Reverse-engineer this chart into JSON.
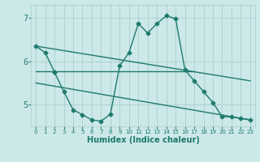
{
  "xlabel": "Humidex (Indice chaleur)",
  "bg_color": "#cce8e8",
  "grid_color": "#aacfcf",
  "line_color": "#1e7a6e",
  "xlim": [
    -0.5,
    23.5
  ],
  "ylim": [
    4.5,
    7.3
  ],
  "yticks": [
    5,
    6,
    7
  ],
  "xticks": [
    0,
    1,
    2,
    3,
    4,
    5,
    6,
    7,
    8,
    9,
    10,
    11,
    12,
    13,
    14,
    15,
    16,
    17,
    18,
    19,
    20,
    21,
    22,
    23
  ],
  "line1_x": [
    0,
    1,
    2
  ],
  "line1_y": [
    6.35,
    6.2,
    5.75
  ],
  "line2_x": [
    2,
    3,
    4,
    5,
    6,
    7,
    8,
    9,
    10,
    11,
    12,
    13,
    14,
    15,
    16,
    17,
    18,
    19,
    20,
    21,
    22,
    23
  ],
  "line2_y": [
    5.75,
    5.3,
    4.88,
    4.77,
    4.65,
    4.62,
    4.78,
    5.9,
    6.2,
    6.87,
    6.65,
    6.87,
    7.05,
    6.98,
    5.8,
    5.55,
    5.3,
    5.05,
    4.72,
    4.72,
    4.68,
    4.65
  ],
  "line3_x": [
    0,
    17
  ],
  "line3_y": [
    5.77,
    5.77
  ],
  "line4_x": [
    0,
    23
  ],
  "line4_y": [
    6.35,
    5.55
  ],
  "line5_x": [
    0,
    23
  ],
  "line5_y": [
    5.5,
    4.65
  ],
  "marker": "D",
  "markersize": 2.5,
  "linewidth": 1.0,
  "xlabel_fontsize": 7,
  "xtick_fontsize": 5,
  "ytick_fontsize": 7
}
